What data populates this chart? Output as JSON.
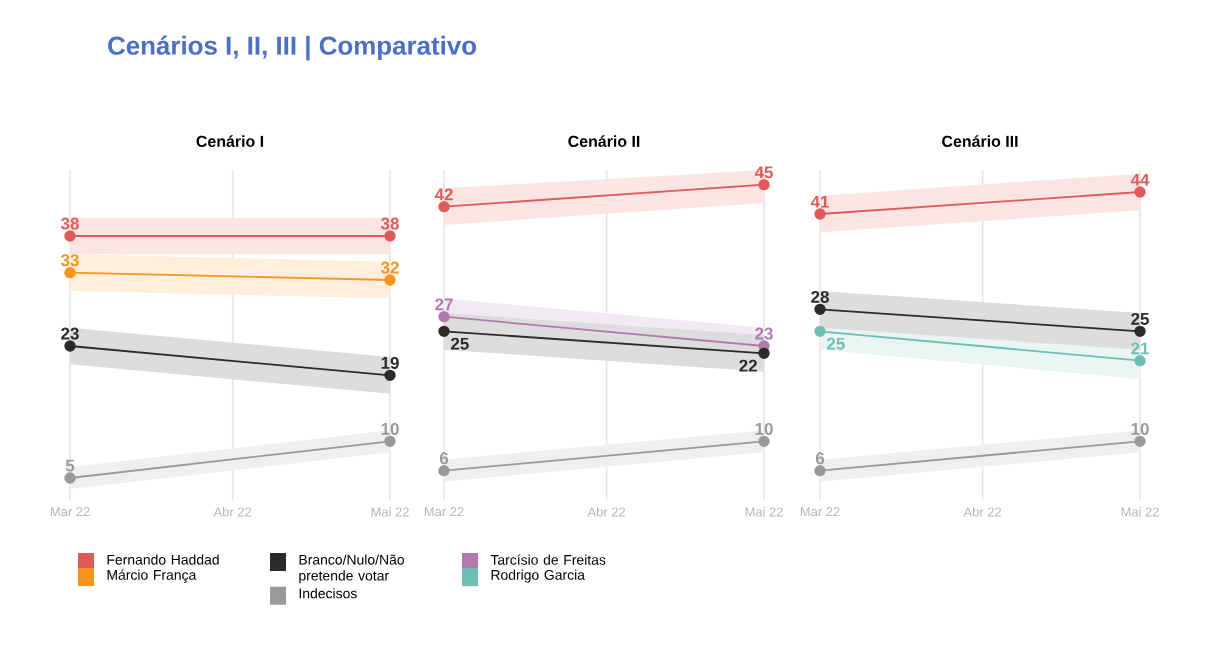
{
  "chart_data": [
    {
      "type": "line",
      "title": "Cenário I",
      "annotations": [
        "Cenários I, II, III | Comparativo"
      ],
      "x": [
        "2022-03",
        "2022-05"
      ],
      "xlim": [
        "2022-03",
        "2022-05"
      ],
      "xticks": [
        {
          "value": "2022-03",
          "label": "Mar 22"
        },
        {
          "value": "2022-04",
          "label": "Abr 22"
        },
        {
          "value": "2022-05",
          "label": "Mai 22"
        }
      ],
      "ylim": [
        2,
        47
      ],
      "tick_labels": "x",
      "grid": "x",
      "marker": "circle",
      "line_style": "solid",
      "data_labels": true,
      "legend": "bottom",
      "series": [
        {
          "name": "Fernando Haddad",
          "color": "#e05a5a",
          "values": [
            38,
            38
          ],
          "lower": [
            35.5,
            35.5
          ],
          "upper": [
            40.5,
            40.5
          ]
        },
        {
          "name": "Márcio França",
          "color": "#f7941d",
          "values": [
            33,
            32
          ],
          "lower": [
            30.5,
            29.5
          ],
          "upper": [
            35.5,
            34.5
          ]
        },
        {
          "name": "Branco/Nulo/Não pretende votar",
          "color": "#2b2b2b",
          "values": [
            23,
            19
          ],
          "lower": [
            20.5,
            16.5
          ],
          "upper": [
            25.5,
            21.5
          ]
        },
        {
          "name": "Indecisos",
          "color": "#999999",
          "values": [
            5,
            10
          ],
          "lower": [
            3.5,
            8.5
          ],
          "upper": [
            6.5,
            11.5
          ]
        }
      ]
    },
    {
      "type": "line",
      "title": "Cenário II",
      "x": [
        "2022-03",
        "2022-05"
      ],
      "xlim": [
        "2022-03",
        "2022-05"
      ],
      "xticks": [
        {
          "value": "2022-03",
          "label": "Mar 22"
        },
        {
          "value": "2022-04",
          "label": "Abr 22"
        },
        {
          "value": "2022-05",
          "label": "Mai 22"
        }
      ],
      "ylim": [
        2,
        47
      ],
      "tick_labels": "x",
      "grid": "x",
      "marker": "circle",
      "line_style": "solid",
      "data_labels": true,
      "legend": "bottom",
      "series": [
        {
          "color": "#e05a5a",
          "values": [
            42,
            45
          ],
          "lower": [
            39.5,
            42.5
          ],
          "upper": [
            44.5,
            47
          ]
        },
        {
          "name": "Tarcísio de Freitas",
          "color": "#b07aae",
          "values": [
            27,
            23
          ],
          "lower": [
            24.5,
            20.5
          ],
          "upper": [
            29.5,
            25.5
          ]
        },
        {
          "color": "#2b2b2b",
          "values": [
            25,
            22
          ],
          "lower": [
            22.5,
            19.5
          ],
          "upper": [
            27.5,
            24.5
          ]
        },
        {
          "color": "#999999",
          "values": [
            6,
            10
          ],
          "lower": [
            4.5,
            8.5
          ],
          "upper": [
            7.5,
            11.5
          ]
        }
      ]
    },
    {
      "type": "line",
      "title": "Cenário III",
      "x": [
        "2022-03",
        "2022-05"
      ],
      "xlim": [
        "2022-03",
        "2022-05"
      ],
      "xticks": [
        {
          "value": "2022-03",
          "label": "Mar 22"
        },
        {
          "value": "2022-04",
          "label": "Abr 22"
        },
        {
          "value": "2022-05",
          "label": "Mai 22"
        }
      ],
      "ylim": [
        2,
        47
      ],
      "tick_labels": "x",
      "grid": "x",
      "marker": "circle",
      "line_style": "solid",
      "data_labels": true,
      "legend": "bottom",
      "series": [
        {
          "color": "#e05a5a",
          "values": [
            41,
            44
          ],
          "lower": [
            38.5,
            41.5
          ],
          "upper": [
            43.5,
            46.5
          ]
        },
        {
          "name": "Rodrigo Garcia",
          "color": "#6dbfb5",
          "values": [
            25,
            21
          ],
          "lower": [
            22.5,
            18.5
          ],
          "upper": [
            27.5,
            23.5
          ]
        },
        {
          "color": "#2b2b2b",
          "values": [
            28,
            25
          ],
          "lower": [
            25.5,
            22.5
          ],
          "upper": [
            30.5,
            27.5
          ]
        },
        {
          "color": "#999999",
          "values": [
            6,
            10
          ],
          "lower": [
            4.5,
            8.5
          ],
          "upper": [
            7.5,
            11.5
          ]
        }
      ]
    }
  ]
}
